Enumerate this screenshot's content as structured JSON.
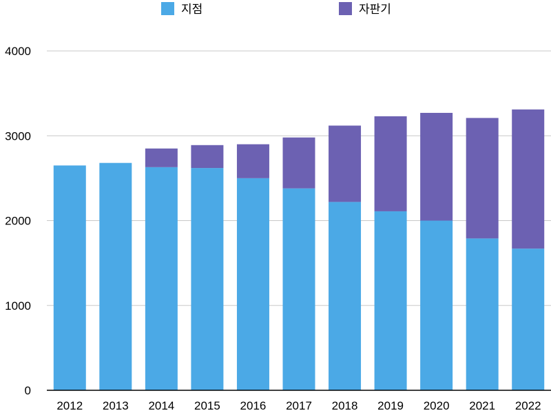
{
  "chart_data": {
    "type": "bar",
    "stacked": true,
    "title": "",
    "xlabel": "",
    "ylabel": "",
    "categories": [
      "2012",
      "2013",
      "2014",
      "2015",
      "2016",
      "2017",
      "2018",
      "2019",
      "2020",
      "2021",
      "2022"
    ],
    "series": [
      {
        "name": "지점",
        "color": "#4ba9e6",
        "values": [
          2650,
          2680,
          2630,
          2620,
          2500,
          2380,
          2220,
          2110,
          2000,
          1790,
          1670
        ]
      },
      {
        "name": "자판기",
        "color": "#6c61b2",
        "values": [
          0,
          0,
          220,
          270,
          400,
          600,
          900,
          1120,
          1270,
          1420,
          1640
        ]
      }
    ],
    "ylim": [
      0,
      4000
    ],
    "yticks": [
      0,
      1000,
      2000,
      3000,
      4000
    ],
    "grid": true,
    "legend": {
      "position": "top"
    }
  }
}
